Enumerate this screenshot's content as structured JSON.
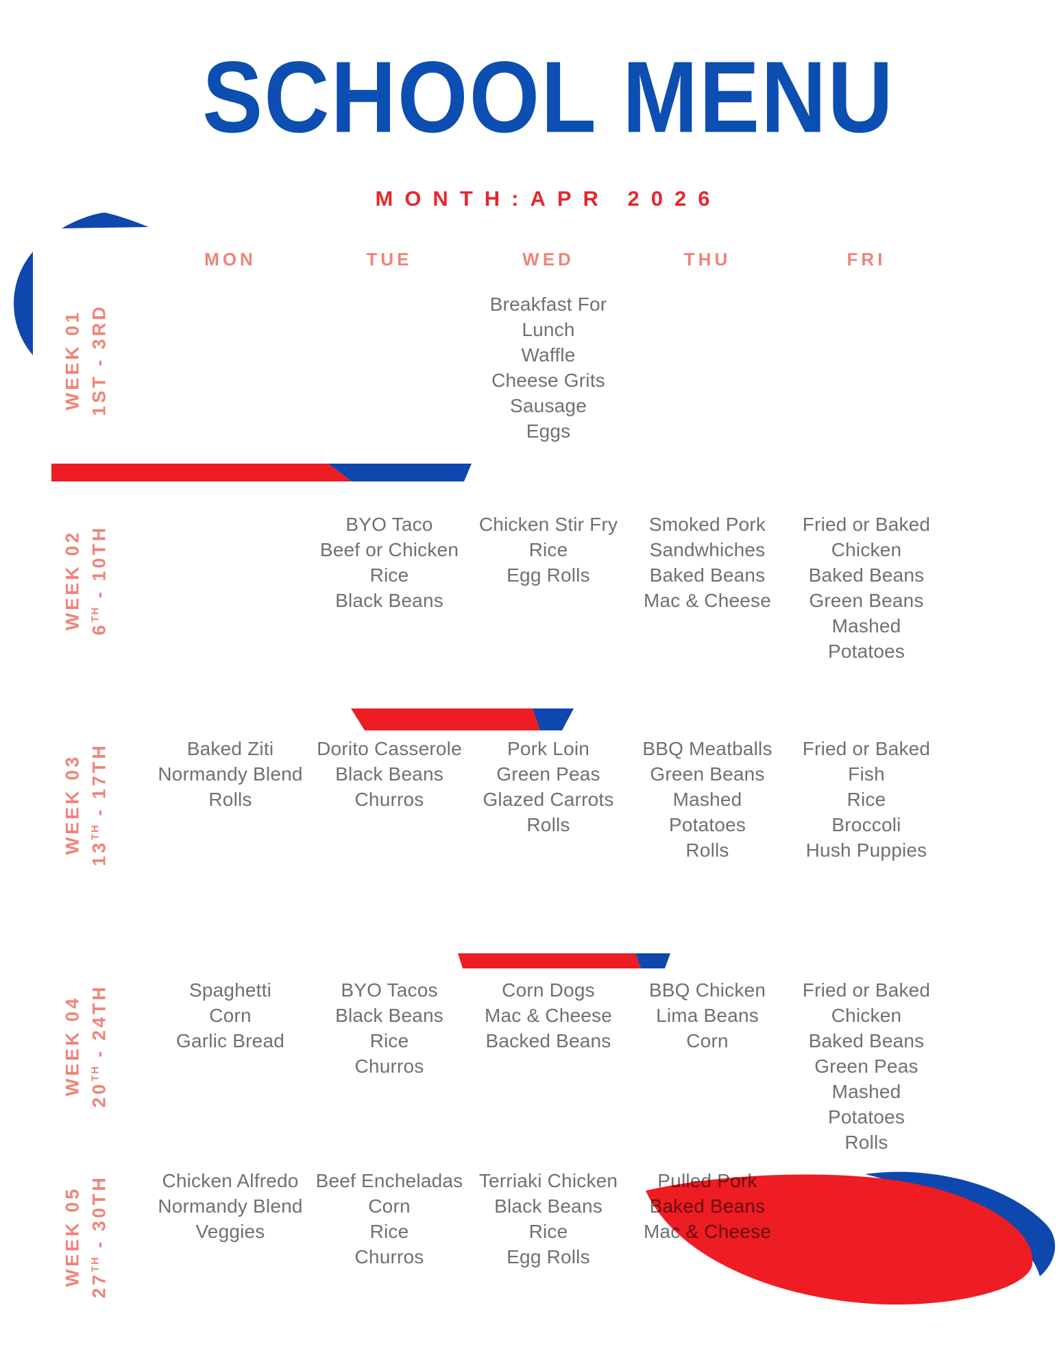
{
  "page": {
    "title": "SCHOOL MENU",
    "subtitle": "MONTH:APR 2026"
  },
  "colors": {
    "blue_title": "#0C4EB1",
    "blue_shape": "#0E47AE",
    "red_accent": "#E9262B",
    "red_shape": "#EE1C23",
    "salmon": "#EF8479",
    "text_gray": "#6F7073"
  },
  "days": [
    "MON",
    "TUE",
    "WED",
    "THU",
    "FRI"
  ],
  "weeks": [
    {
      "label": "WEEK 01",
      "date": {
        "start": "1ST",
        "sup": "",
        "rest": " - 3RD"
      },
      "menus": {
        "mon": [],
        "tue": [],
        "wed": [
          "Breakfast For Lunch",
          "Waffle",
          "Cheese Grits",
          "Sausage",
          "Eggs"
        ],
        "thu": [],
        "fri": []
      }
    },
    {
      "label": "WEEK 02",
      "date": {
        "start": "6",
        "sup": "TH",
        "rest": " - 10TH"
      },
      "menus": {
        "mon": [],
        "tue": [
          "BYO Taco",
          "Beef or Chicken",
          "Rice",
          "Black Beans"
        ],
        "wed": [
          "Chicken Stir Fry",
          "Rice",
          "Egg Rolls"
        ],
        "thu": [
          "Smoked Pork Sandwhiches",
          "Baked Beans",
          "Mac & Cheese"
        ],
        "fri": [
          "Fried or Baked Chicken",
          "Baked Beans",
          "Green Beans",
          "Mashed Potatoes"
        ]
      }
    },
    {
      "label": "WEEK 03",
      "date": {
        "start": "13",
        "sup": "TH",
        "rest": " - 17TH"
      },
      "menus": {
        "mon": [
          "Baked Ziti",
          "Normandy Blend",
          "Rolls"
        ],
        "tue": [
          "Dorito Casserole",
          "Black Beans",
          "Churros"
        ],
        "wed": [
          "Pork Loin",
          "Green Peas",
          "Glazed Carrots",
          "Rolls"
        ],
        "thu": [
          "BBQ Meatballs",
          "Green Beans",
          "Mashed Potatoes",
          "Rolls"
        ],
        "fri": [
          "Fried or Baked Fish",
          "Rice",
          "Broccoli",
          "Hush Puppies"
        ]
      }
    },
    {
      "label": "WEEK 04",
      "date": {
        "start": "20",
        "sup": "TH",
        "rest": " - 24TH"
      },
      "menus": {
        "mon": [
          "Spaghetti",
          "Corn",
          "Garlic Bread"
        ],
        "tue": [
          "BYO Tacos",
          "Black Beans",
          "Rice",
          "Churros"
        ],
        "wed": [
          "Corn Dogs",
          "Mac & Cheese",
          "Backed Beans"
        ],
        "thu": [
          "BBQ Chicken",
          "Lima Beans",
          "Corn"
        ],
        "fri": [
          "Fried or Baked Chicken",
          "Baked Beans",
          "Green Peas",
          "Mashed Potatoes",
          "Rolls"
        ]
      }
    },
    {
      "label": "WEEK 05",
      "date": {
        "start": "27",
        "sup": "TH",
        "rest": " - 30TH"
      },
      "menus": {
        "mon": [
          "Chicken Alfredo",
          "Normandy Blend",
          "Veggies"
        ],
        "tue": [
          "Beef Encheladas",
          "Corn",
          "Rice",
          "Churros"
        ],
        "wed": [
          "Terriaki Chicken",
          "Black Beans",
          "Rice",
          "Egg Rolls"
        ],
        "thu": [
          "Pulled Pork",
          "Baked Beans",
          "Mac & Cheese"
        ],
        "fri": []
      }
    }
  ]
}
